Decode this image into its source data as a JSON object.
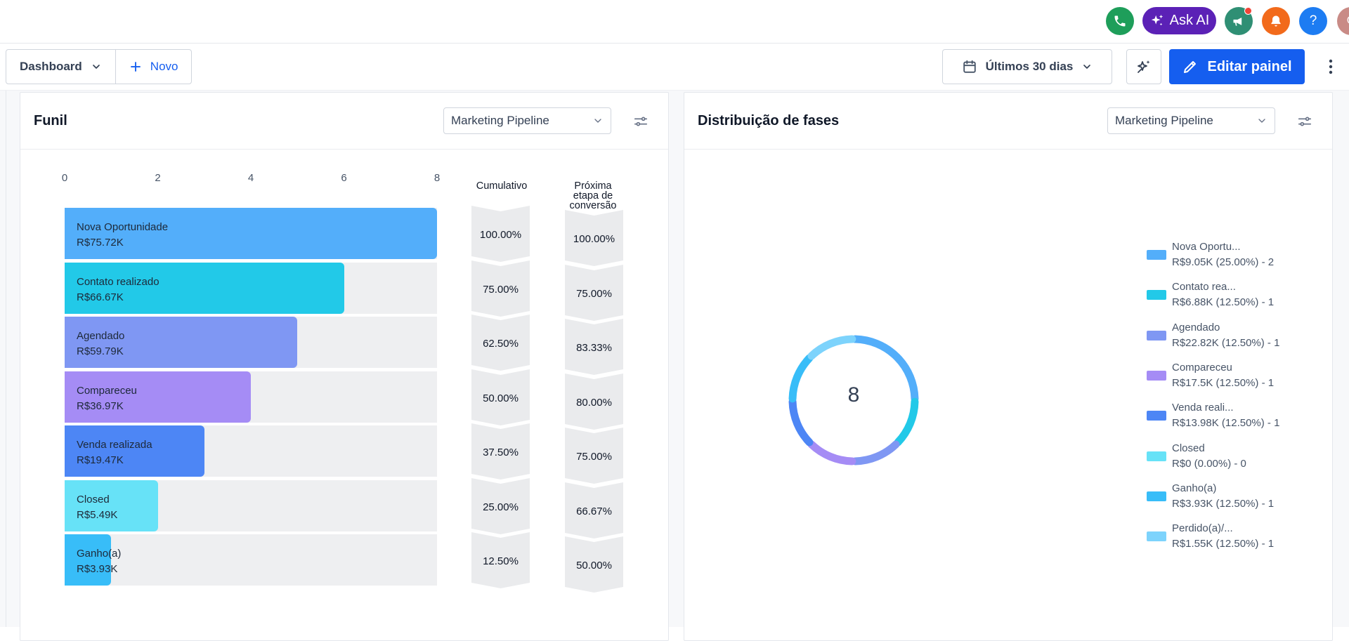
{
  "topbar": {
    "ask_ai_label": "Ask AI",
    "help_label": "?",
    "avatar_initial": "G",
    "icons": [
      "phone-icon",
      "sparkle-icon",
      "megaphone-icon",
      "bell-icon",
      "help-icon"
    ],
    "colors": {
      "phone": "#1e9e5a",
      "ask_ai": "#5b21b6",
      "megaphone": "#2f8f74",
      "bell": "#f26a1b",
      "help": "#1d7cf2"
    }
  },
  "toolbar": {
    "dashboard_label": "Dashboard",
    "novo_label": "Novo",
    "date_range_label": "Últimos 30 dias",
    "edit_label": "Editar painel"
  },
  "funnel_card": {
    "title": "Funil",
    "pipeline_select": "Marketing Pipeline",
    "col_cumulative": "Cumulativo",
    "col_next_line1": "Próxima",
    "col_next_line2": "etapa de",
    "col_next_line3": "conversão"
  },
  "donut_card": {
    "title": "Distribuição de fases",
    "pipeline_select": "Marketing Pipeline",
    "total": "8",
    "legend": [
      {
        "name": "Nova Oportu...",
        "value": "R$9.05K (25.00%) - 2",
        "color": "#53aefa"
      },
      {
        "name": "Contato rea...",
        "value": "R$6.88K (12.50%) - 1",
        "color": "#22c9e8"
      },
      {
        "name": "Agendado",
        "value": "R$22.82K (12.50%) - 1",
        "color": "#7f97f3"
      },
      {
        "name": "Compareceu",
        "value": "R$17.5K (12.50%) - 1",
        "color": "#a58cf5"
      },
      {
        "name": "Venda reali...",
        "value": "R$13.98K (12.50%) - 1",
        "color": "#4d86f5"
      },
      {
        "name": "Closed",
        "value": "R$0 (0.00%) - 0",
        "color": "#67e2f7"
      },
      {
        "name": "Ganho(a)",
        "value": "R$3.93K (12.50%) - 1",
        "color": "#38bdf8"
      },
      {
        "name": "Perdido(a)/...",
        "value": "R$1.55K (12.50%) - 1",
        "color": "#7dd3fc"
      }
    ]
  },
  "chart_data": [
    {
      "type": "bar",
      "orientation": "horizontal",
      "xlim": [
        0,
        8
      ],
      "x_ticks": [
        "0",
        "2",
        "4",
        "6",
        "8"
      ],
      "categories": [
        "Nova Oportunidade",
        "Contato realizado",
        "Agendado",
        "Compareceu",
        "Venda realizada",
        "Closed",
        "Ganho(a)"
      ],
      "values": [
        8,
        6,
        5,
        4,
        3,
        2,
        1
      ],
      "amounts": [
        "R$75.72K",
        "R$66.67K",
        "R$59.79K",
        "R$36.97K",
        "R$19.47K",
        "R$5.49K",
        "R$3.93K"
      ],
      "colors": [
        "#53aefa",
        "#22c9e8",
        "#7f97f3",
        "#a58cf5",
        "#4d86f5",
        "#67e2f7",
        "#38bdf8"
      ],
      "cumulative": [
        "100.00%",
        "75.00%",
        "62.50%",
        "50.00%",
        "37.50%",
        "25.00%",
        "12.50%"
      ],
      "next_stage_conversion": [
        "100.00%",
        "75.00%",
        "83.33%",
        "80.00%",
        "75.00%",
        "66.67%",
        "50.00%"
      ]
    },
    {
      "type": "pie",
      "variant": "donut",
      "total": 8,
      "categories": [
        "Nova Oportunidade",
        "Contato realizado",
        "Agendado",
        "Compareceu",
        "Venda realizada",
        "Closed",
        "Ganho(a)",
        "Perdido(a)"
      ],
      "values": [
        2,
        1,
        1,
        1,
        1,
        0,
        1,
        1
      ],
      "colors": [
        "#53aefa",
        "#22c9e8",
        "#7f97f3",
        "#a58cf5",
        "#4d86f5",
        "#67e2f7",
        "#38bdf8",
        "#7dd3fc"
      ]
    }
  ]
}
